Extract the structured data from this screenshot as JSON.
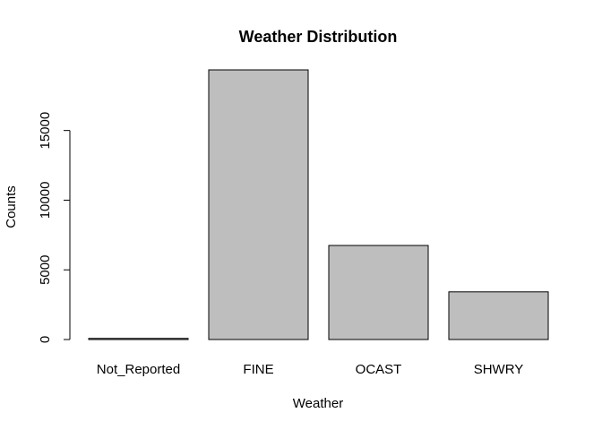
{
  "chart_data": {
    "type": "bar",
    "title": "Weather Distribution",
    "xlabel": "Weather",
    "ylabel": "Counts",
    "categories": [
      "Not_Reported",
      "FINE",
      "OCAST",
      "SHWRY"
    ],
    "values": [
      80,
      19350,
      6750,
      3420
    ],
    "ylim": [
      0,
      19350
    ],
    "yticks": [
      0,
      5000,
      10000,
      15000
    ],
    "ytick_labels": [
      "0",
      "5000",
      "10000",
      "15000"
    ],
    "bar_color": "#bebebe",
    "grid": false,
    "legend": "none"
  }
}
